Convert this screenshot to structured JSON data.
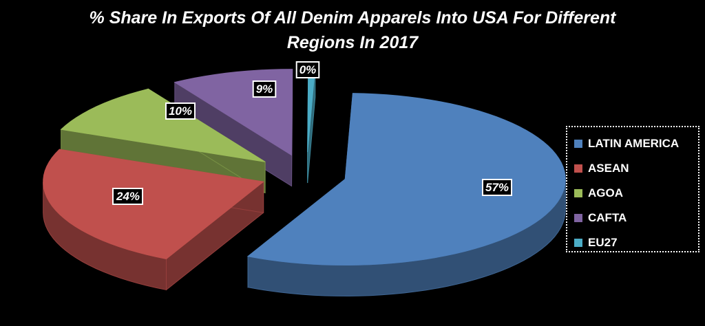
{
  "chart_data": {
    "type": "pie",
    "style": "3d-exploded",
    "title_lines": [
      "% Share In Exports Of All Denim Apparels Into USA For Different",
      "Regions  In 2017"
    ],
    "slices": [
      {
        "label": "LATIN AMERICA",
        "value": 57,
        "display": "57%",
        "color": "#4f81bd"
      },
      {
        "label": "ASEAN",
        "value": 24,
        "display": "24%",
        "color": "#c0504d"
      },
      {
        "label": "AGOA",
        "value": 10,
        "display": "10%",
        "color": "#9bbb59"
      },
      {
        "label": "CAFTA",
        "value": 9,
        "display": "9%",
        "color": "#8064a2"
      },
      {
        "label": "EU27",
        "value": 0.5,
        "display": "0%",
        "color": "#4bacc6"
      }
    ],
    "legend_position": "right",
    "data_labels": "percent, boxed"
  }
}
